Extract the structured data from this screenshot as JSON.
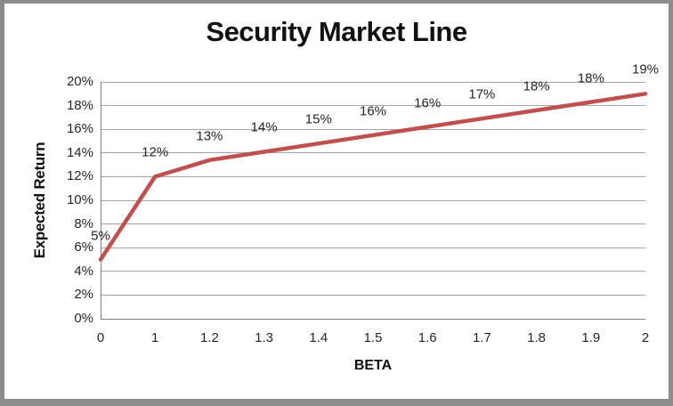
{
  "frame": {
    "border_color": "#8c8c8c",
    "background_color": "#ffffff"
  },
  "chart_data": {
    "type": "line",
    "title": "Security Market Line",
    "xlabel": "BETA",
    "ylabel": "Expected Return",
    "categories": [
      "0",
      "1",
      "1.2",
      "1.3",
      "1.4",
      "1.5",
      "1.6",
      "1.7",
      "1.8",
      "1.9",
      "2"
    ],
    "series": [
      {
        "name": "Security Market Line",
        "values": [
          5,
          12,
          13.4,
          14.1,
          14.8,
          15.5,
          16.2,
          16.9,
          17.6,
          18.3,
          19
        ],
        "point_labels": [
          "5%",
          "12%",
          "13%",
          "14%",
          "15%",
          "16%",
          "16%",
          "17%",
          "18%",
          "18%",
          "19%"
        ]
      }
    ],
    "y_ticks": [
      "0%",
      "2%",
      "4%",
      "6%",
      "8%",
      "10%",
      "12%",
      "14%",
      "16%",
      "18%",
      "20%"
    ],
    "ylim": [
      0,
      20
    ],
    "grid": "horizontal",
    "legend": "none",
    "line_color": "#c0504d",
    "gridline_color": "#a6a6a6",
    "axis_color": "#7f7f7f",
    "text_color": "#262626"
  }
}
